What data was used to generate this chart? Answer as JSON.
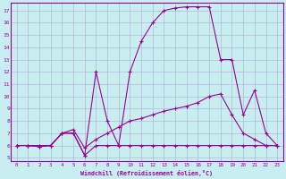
{
  "xlabel": "Windchill (Refroidissement éolien,°C)",
  "bg_color": "#c8eef0",
  "line_color": "#990099",
  "grid_color": "#b0b8d8",
  "x_ticks": [
    0,
    1,
    2,
    3,
    4,
    5,
    6,
    7,
    8,
    9,
    10,
    11,
    12,
    13,
    14,
    15,
    16,
    17,
    18,
    19,
    20,
    21,
    22,
    23
  ],
  "y_ticks": [
    5,
    6,
    7,
    8,
    9,
    10,
    11,
    12,
    13,
    14,
    15,
    16,
    17
  ],
  "ylim": [
    4.7,
    17.6
  ],
  "xlim": [
    -0.5,
    23.5
  ],
  "series": [
    [
      6,
      6,
      5.9,
      6,
      7,
      7,
      5.2,
      6,
      6,
      6,
      6,
      6,
      6,
      6,
      6,
      6,
      6,
      6,
      6,
      6,
      6,
      6,
      6,
      6
    ],
    [
      6,
      6,
      6,
      6,
      7,
      7.3,
      5.8,
      6.5,
      7,
      7.5,
      8,
      8.2,
      8.5,
      8.8,
      9,
      9.2,
      9.5,
      10,
      10.2,
      8.5,
      7,
      6.5,
      6,
      6
    ],
    [
      6,
      6,
      5.9,
      6,
      7,
      7,
      5.2,
      12,
      8,
      6,
      12,
      14.5,
      16,
      17,
      17.2,
      17.3,
      17.3,
      17.3,
      13,
      13,
      8.5,
      10.5,
      7,
      6
    ]
  ]
}
